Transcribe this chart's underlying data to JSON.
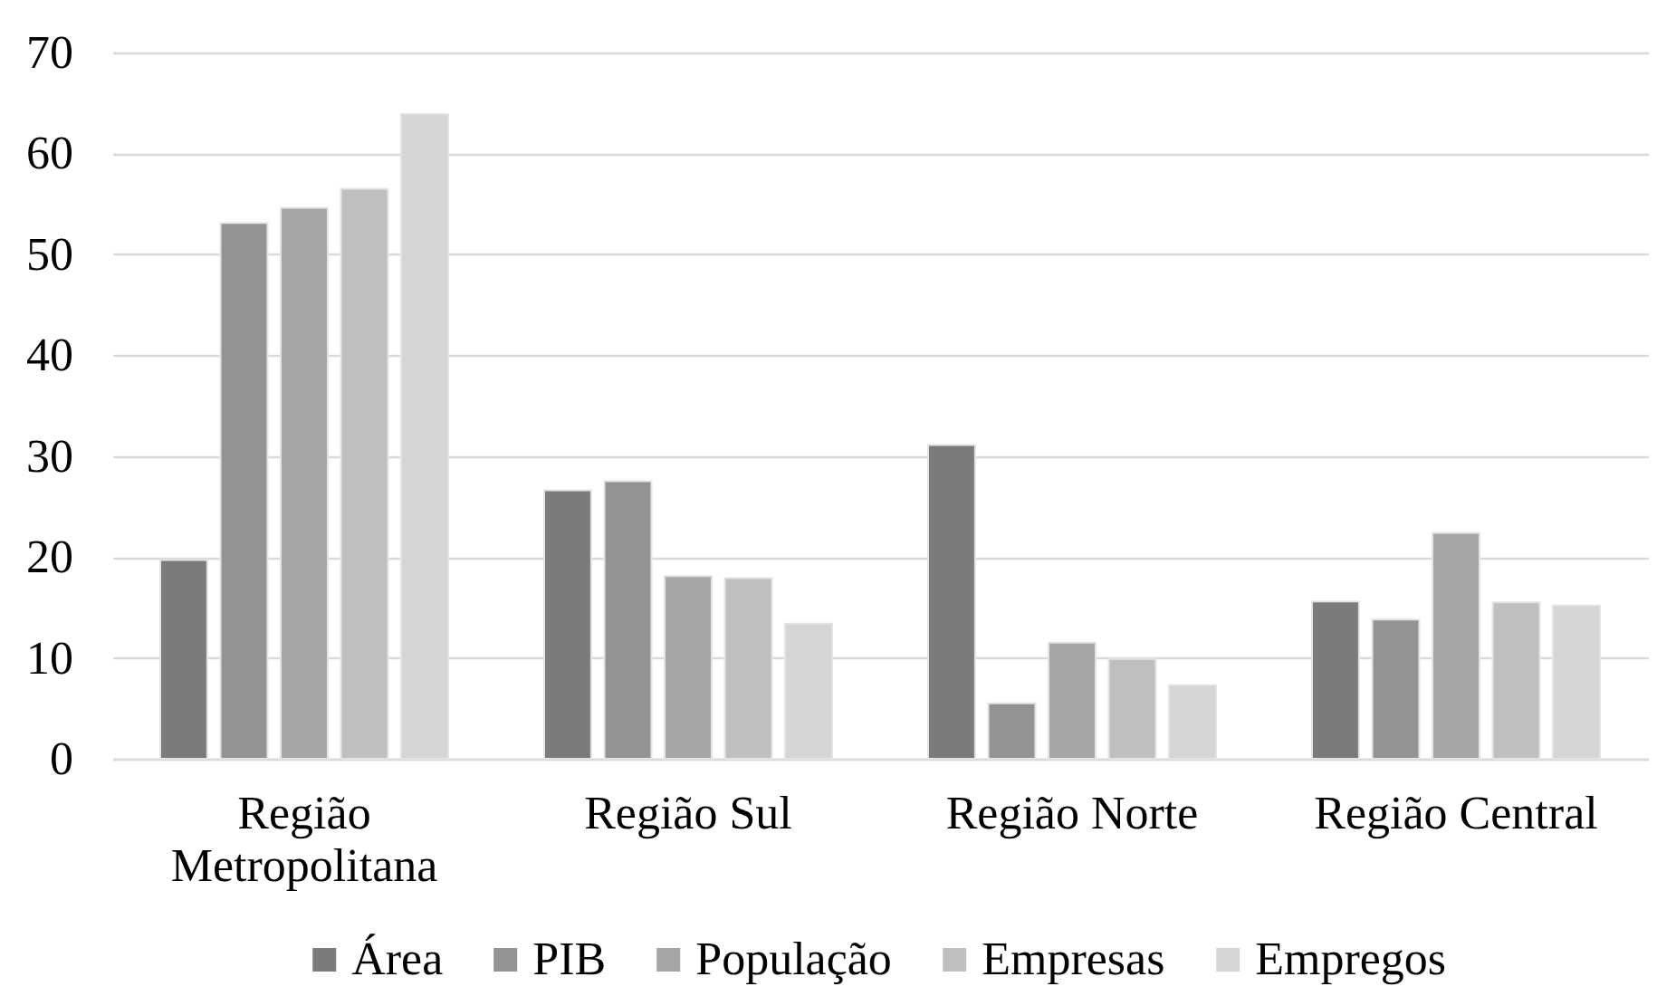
{
  "chart_data": {
    "type": "bar",
    "categories": [
      "Região Metropolitana",
      "Região Sul",
      "Região Norte",
      "Região Central"
    ],
    "series": [
      {
        "name": "Área",
        "color": "#7b7b7b",
        "values": [
          19.7,
          26.6,
          31.1,
          15.6
        ]
      },
      {
        "name": "PIB",
        "color": "#939393",
        "values": [
          53.1,
          27.5,
          5.5,
          13.8
        ]
      },
      {
        "name": "População",
        "color": "#a5a5a5",
        "values": [
          54.6,
          18.1,
          11.5,
          22.4
        ]
      },
      {
        "name": "Empresas",
        "color": "#bfbfbf",
        "values": [
          56.5,
          17.9,
          9.9,
          15.5
        ]
      },
      {
        "name": "Empregos",
        "color": "#d5d5d5",
        "values": [
          63.9,
          13.4,
          7.3,
          15.2
        ]
      }
    ],
    "ylim": [
      0,
      70
    ],
    "yticks": [
      0,
      10,
      20,
      30,
      40,
      50,
      60,
      70
    ],
    "grid": "y",
    "legend": "bottom"
  }
}
